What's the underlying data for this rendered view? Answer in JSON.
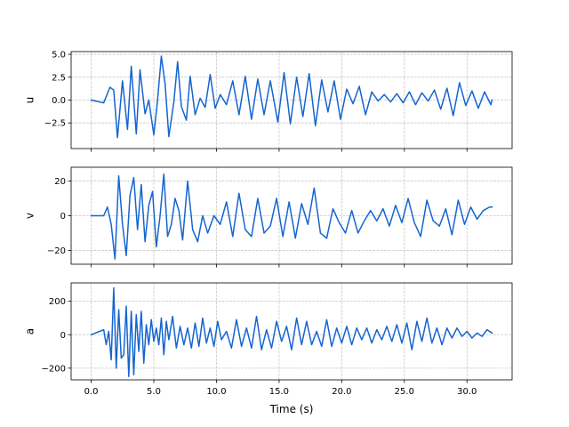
{
  "chart_data": [
    {
      "type": "line",
      "ylabel": "u",
      "xlabel": "",
      "xlim": [
        -1.6,
        33.6
      ],
      "ylim": [
        -5.3,
        5.3
      ],
      "yticks": [
        5.0,
        2.5,
        0.0,
        -2.5
      ],
      "ytick_labels": [
        "5.0",
        "2.5",
        "0.0",
        "−2.5"
      ],
      "xticks": [
        0,
        5,
        10,
        15,
        20,
        25,
        30
      ],
      "xtick_labels": [],
      "grid": true,
      "color": "#1565d0",
      "series": [
        {
          "x": [
            0.0,
            1.0,
            1.5,
            1.8,
            2.1,
            2.5,
            2.9,
            3.2,
            3.6,
            3.9,
            4.3,
            4.6,
            5.0,
            5.3,
            5.6,
            5.9,
            6.2,
            6.6,
            6.9,
            7.2,
            7.6,
            7.9,
            8.3,
            8.7,
            9.1,
            9.5,
            9.9,
            10.3,
            10.8,
            11.3,
            11.8,
            12.3,
            12.8,
            13.3,
            13.8,
            14.3,
            14.9,
            15.4,
            15.9,
            16.4,
            16.9,
            17.4,
            17.9,
            18.4,
            18.9,
            19.4,
            19.9,
            20.4,
            20.9,
            21.4,
            21.9,
            22.4,
            22.9,
            23.4,
            23.9,
            24.4,
            24.9,
            25.4,
            25.9,
            26.4,
            26.9,
            27.4,
            27.9,
            28.4,
            28.9,
            29.4,
            29.9,
            30.4,
            30.9,
            31.4,
            31.9,
            32.0
          ],
          "y": [
            0.0,
            -0.3,
            1.4,
            1.1,
            -4.1,
            2.1,
            -3.2,
            3.7,
            -3.7,
            3.3,
            -1.5,
            0.0,
            -3.8,
            0.0,
            4.8,
            1.8,
            -4.0,
            -0.2,
            4.2,
            -0.7,
            -2.2,
            2.6,
            -1.6,
            0.2,
            -0.8,
            2.8,
            -0.9,
            0.6,
            -0.5,
            2.1,
            -1.6,
            2.6,
            -2.1,
            2.3,
            -1.6,
            2.1,
            -2.4,
            3.0,
            -2.6,
            2.5,
            -1.8,
            2.9,
            -2.8,
            2.2,
            -1.3,
            2.1,
            -2.1,
            1.2,
            -0.4,
            1.5,
            -1.6,
            0.9,
            -0.1,
            0.6,
            -0.2,
            0.7,
            -0.3,
            0.9,
            -0.5,
            0.8,
            -0.1,
            1.1,
            -1.0,
            1.3,
            -1.7,
            1.9,
            -0.6,
            1.0,
            -0.9,
            0.9,
            -0.5,
            0.0
          ]
        }
      ]
    },
    {
      "type": "line",
      "ylabel": "v",
      "xlabel": "",
      "xlim": [
        -1.6,
        33.6
      ],
      "ylim": [
        -28,
        28
      ],
      "yticks": [
        20,
        0,
        -20
      ],
      "ytick_labels": [
        "20",
        "0",
        "−20"
      ],
      "xticks": [
        0,
        5,
        10,
        15,
        20,
        25,
        30
      ],
      "xtick_labels": [],
      "grid": true,
      "color": "#1565d0",
      "series": [
        {
          "x": [
            0.0,
            1.0,
            1.3,
            1.6,
            1.9,
            2.2,
            2.5,
            2.8,
            3.1,
            3.4,
            3.7,
            4.0,
            4.3,
            4.6,
            4.9,
            5.2,
            5.5,
            5.8,
            6.1,
            6.4,
            6.7,
            7.0,
            7.3,
            7.7,
            8.1,
            8.5,
            8.9,
            9.3,
            9.8,
            10.3,
            10.8,
            11.3,
            11.8,
            12.3,
            12.8,
            13.3,
            13.8,
            14.3,
            14.8,
            15.3,
            15.8,
            16.3,
            16.8,
            17.3,
            17.8,
            18.3,
            18.8,
            19.3,
            19.8,
            20.3,
            20.8,
            21.3,
            21.8,
            22.3,
            22.8,
            23.3,
            23.8,
            24.3,
            24.8,
            25.3,
            25.8,
            26.3,
            26.8,
            27.3,
            27.8,
            28.3,
            28.8,
            29.3,
            29.8,
            30.3,
            30.8,
            31.3,
            31.8,
            32.0
          ],
          "y": [
            0.0,
            0.0,
            5.0,
            -5.0,
            -25.0,
            23.0,
            -5.0,
            -23.0,
            12.0,
            22.0,
            -8.0,
            18.0,
            -15.0,
            6.0,
            14.0,
            -18.0,
            0.0,
            24.0,
            -12.0,
            -5.0,
            10.0,
            3.0,
            -14.0,
            20.0,
            -8.0,
            -15.0,
            0.0,
            -10.0,
            0.0,
            -5.0,
            8.0,
            -12.0,
            13.0,
            -8.0,
            -12.0,
            10.0,
            -10.0,
            -6.0,
            10.0,
            -12.0,
            8.0,
            -13.0,
            7.0,
            -5.0,
            16.0,
            -10.0,
            -13.0,
            4.0,
            -4.0,
            -10.0,
            3.0,
            -10.0,
            -3.0,
            3.0,
            -3.0,
            4.0,
            -6.0,
            6.0,
            -4.0,
            10.0,
            -4.0,
            -12.0,
            9.0,
            -3.0,
            -6.0,
            4.0,
            -11.0,
            9.0,
            -5.0,
            5.0,
            -2.0,
            3.0,
            5.0,
            5.0
          ]
        }
      ]
    },
    {
      "type": "line",
      "ylabel": "a",
      "xlabel": "Time (s)",
      "xlim": [
        -1.6,
        33.6
      ],
      "ylim": [
        -270,
        310
      ],
      "yticks": [
        200,
        0,
        -200
      ],
      "ytick_labels": [
        "200",
        "0",
        "−200"
      ],
      "xticks": [
        0,
        5,
        10,
        15,
        20,
        25,
        30
      ],
      "xtick_labels": [
        "0.0",
        "5.0",
        "10.0",
        "15.0",
        "20.0",
        "25.0",
        "30.0"
      ],
      "grid": true,
      "color": "#1565d0",
      "series": [
        {
          "x": [
            0.0,
            1.0,
            1.2,
            1.4,
            1.6,
            1.8,
            2.0,
            2.2,
            2.4,
            2.6,
            2.8,
            3.0,
            3.2,
            3.4,
            3.6,
            3.8,
            4.0,
            4.2,
            4.4,
            4.6,
            4.8,
            5.0,
            5.2,
            5.4,
            5.6,
            5.8,
            6.0,
            6.2,
            6.5,
            6.8,
            7.1,
            7.4,
            7.7,
            8.0,
            8.3,
            8.6,
            8.9,
            9.2,
            9.5,
            9.8,
            10.1,
            10.4,
            10.8,
            11.2,
            11.6,
            12.0,
            12.4,
            12.8,
            13.2,
            13.6,
            14.0,
            14.4,
            14.8,
            15.2,
            15.6,
            16.0,
            16.4,
            16.8,
            17.2,
            17.6,
            18.0,
            18.4,
            18.8,
            19.2,
            19.6,
            20.0,
            20.4,
            20.8,
            21.2,
            21.6,
            22.0,
            22.4,
            22.8,
            23.2,
            23.6,
            24.0,
            24.4,
            24.8,
            25.2,
            25.6,
            26.0,
            26.4,
            26.8,
            27.2,
            27.6,
            28.0,
            28.4,
            28.8,
            29.2,
            29.6,
            30.0,
            30.4,
            30.8,
            31.2,
            31.6,
            32.0
          ],
          "y": [
            0.0,
            30.0,
            -60.0,
            20.0,
            -150.0,
            280.0,
            -200.0,
            150.0,
            -140.0,
            -120.0,
            170.0,
            -250.0,
            140.0,
            -240.0,
            120.0,
            -100.0,
            140.0,
            -170.0,
            60.0,
            -60.0,
            90.0,
            -40.0,
            40.0,
            -60.0,
            100.0,
            -120.0,
            80.0,
            -30.0,
            110.0,
            -80.0,
            50.0,
            -60.0,
            40.0,
            -80.0,
            70.0,
            -70.0,
            100.0,
            -50.0,
            40.0,
            -70.0,
            80.0,
            -30.0,
            20.0,
            -80.0,
            90.0,
            -70.0,
            40.0,
            -80.0,
            110.0,
            -90.0,
            30.0,
            -80.0,
            80.0,
            -40.0,
            50.0,
            -90.0,
            100.0,
            -60.0,
            80.0,
            -60.0,
            20.0,
            -70.0,
            90.0,
            -70.0,
            40.0,
            -50.0,
            50.0,
            -60.0,
            40.0,
            -30.0,
            40.0,
            -50.0,
            30.0,
            -30.0,
            50.0,
            -40.0,
            60.0,
            -50.0,
            70.0,
            -90.0,
            80.0,
            -40.0,
            100.0,
            -50.0,
            40.0,
            -60.0,
            40.0,
            -20.0,
            40.0,
            -10.0,
            20.0,
            -20.0,
            10.0,
            -10.0,
            30.0,
            10.0
          ]
        }
      ]
    }
  ]
}
